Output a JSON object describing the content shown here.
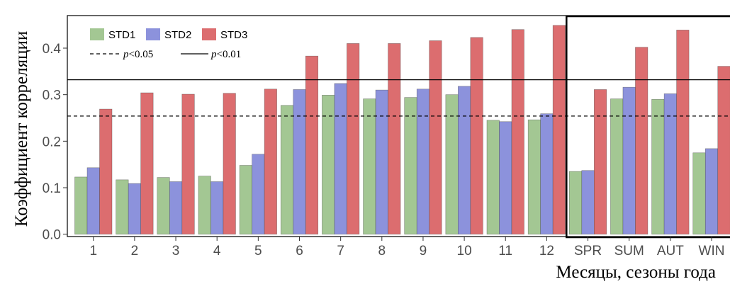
{
  "chart_data": {
    "type": "bar",
    "categories": [
      "1",
      "2",
      "3",
      "4",
      "5",
      "6",
      "7",
      "8",
      "9",
      "10",
      "11",
      "12",
      "SPR",
      "SUM",
      "AUT",
      "WIN"
    ],
    "series": [
      {
        "name": "STD1",
        "color": "#a3c793",
        "values": [
          0.123,
          0.117,
          0.122,
          0.125,
          0.148,
          0.277,
          0.299,
          0.291,
          0.294,
          0.3,
          0.245,
          0.246,
          0.135,
          0.291,
          0.29,
          0.175
        ]
      },
      {
        "name": "STD2",
        "color": "#8c92dc",
        "values": [
          0.143,
          0.109,
          0.113,
          0.113,
          0.172,
          0.311,
          0.324,
          0.31,
          0.312,
          0.318,
          0.242,
          0.259,
          0.137,
          0.316,
          0.302,
          0.184
        ]
      },
      {
        "name": "STD3",
        "color": "#dc6d6f",
        "values": [
          0.269,
          0.304,
          0.301,
          0.303,
          0.312,
          0.383,
          0.41,
          0.41,
          0.416,
          0.423,
          0.44,
          0.449,
          0.311,
          0.402,
          0.439,
          0.361
        ]
      }
    ],
    "xlabel": "Месяцы, сезоны года",
    "ylabel": "Коэффициент корреляции",
    "ylim": [
      -0.005,
      0.47
    ],
    "yticks": [
      "0.0",
      "0.1",
      "0.2",
      "0.3",
      "0.4"
    ],
    "thresholds": [
      {
        "value": 0.254,
        "style": "dashed",
        "label_p": "p",
        "label_rest": "<0.05"
      },
      {
        "value": 0.332,
        "style": "solid",
        "label_p": "p",
        "label_rest": "<0.01"
      }
    ],
    "highlight_box_categories": [
      "SPR",
      "SUM",
      "AUT",
      "WIN"
    ],
    "legend_position": "top-left",
    "grid": false
  }
}
